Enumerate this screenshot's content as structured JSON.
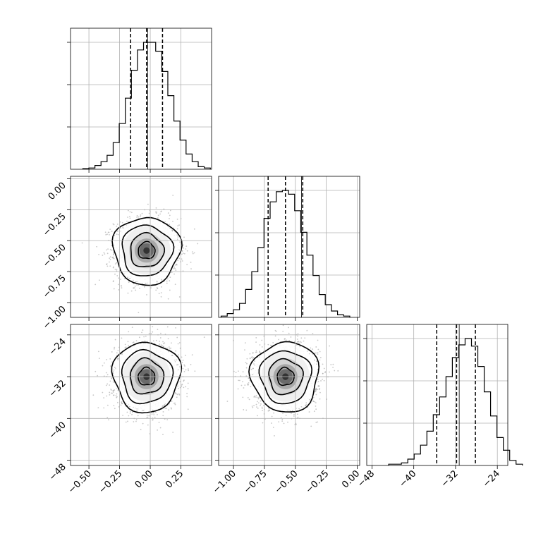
{
  "chart_data": {
    "type": "corner",
    "parameters": [
      {
        "range": [
          -0.65,
          0.5
        ],
        "ticks": [
          -0.5,
          -0.25,
          0.0,
          0.25
        ],
        "tick_labels": [
          "−0.50",
          "−0.25",
          "0.00",
          "0.25"
        ],
        "mean": -0.03,
        "std": 0.13,
        "quantiles": [
          -0.16,
          -0.03,
          0.1
        ],
        "truth": -0.02,
        "hist_counts": [
          0.5,
          1,
          3,
          6,
          11,
          21,
          36,
          56,
          78,
          94,
          100,
          100,
          93,
          77,
          58,
          38,
          23,
          12,
          6,
          2,
          1
        ]
      },
      {
        "range": [
          -1.12,
          0.02
        ],
        "ticks": [
          -1.0,
          -0.75,
          -0.5,
          -0.25,
          0.0
        ],
        "tick_labels": [
          "−1.00",
          "−0.75",
          "−0.50",
          "−0.25",
          "0.00"
        ],
        "mean": -0.58,
        "std": 0.13,
        "quantiles": [
          -0.72,
          -0.58,
          -0.44
        ],
        "truth": -0.45,
        "hist_counts": [
          1,
          3,
          6,
          11,
          22,
          36,
          55,
          78,
          91,
          99,
          100,
          97,
          84,
          67,
          49,
          33,
          18,
          10,
          5,
          2,
          1
        ]
      },
      {
        "range": [
          -49,
          -22
        ],
        "ticks": [
          -48,
          -40,
          -32,
          -24
        ],
        "tick_labels": [
          "−48",
          "−40",
          "−32",
          "−24"
        ],
        "mean": -32,
        "std": 3.2,
        "quantiles": [
          -35.6,
          -31.8,
          -28.2
        ],
        "truth": -31.3,
        "hist_counts": [
          1,
          1,
          2,
          5,
          9,
          16,
          27,
          40,
          54,
          70,
          85,
          95,
          100,
          94,
          78,
          58,
          39,
          22,
          12,
          4,
          1
        ]
      }
    ],
    "pairs": [
      {
        "x": 0,
        "y": 1,
        "correlation": 0.0
      },
      {
        "x": 0,
        "y": 2,
        "correlation": 0.05
      },
      {
        "x": 1,
        "y": 2,
        "correlation": 0.0
      }
    ],
    "contour_levels_sigma": [
      0.5,
      1.0,
      1.5,
      2.0
    ],
    "grid": true
  }
}
